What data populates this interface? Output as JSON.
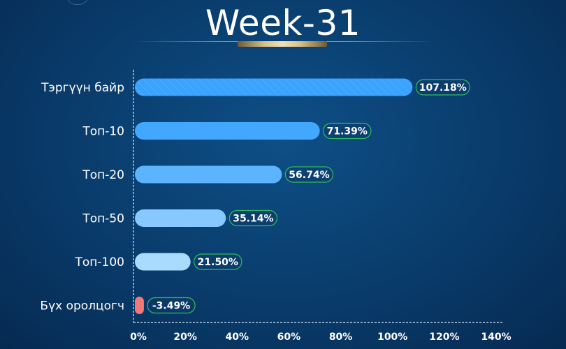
{
  "chart_data": {
    "type": "bar",
    "orientation": "horizontal",
    "title": "Week-31",
    "categories": [
      "Тэргүүн байр",
      "Топ-10",
      "Топ-20",
      "Топ-50",
      "Топ-100",
      "Бүх оролцогч"
    ],
    "values": [
      107.18,
      71.39,
      56.74,
      35.14,
      21.5,
      -3.49
    ],
    "value_labels": [
      "107.18%",
      "71.39%",
      "56.74%",
      "35.14%",
      "21.50%",
      "-3.49%"
    ],
    "x_ticks": [
      "0%",
      "20%",
      "40%",
      "60%",
      "80%",
      "100%",
      "120%",
      "140%"
    ],
    "xlim": [
      0,
      140
    ],
    "grid": false,
    "colors": {
      "bars": [
        "#3aa2ff",
        "#42a8ff",
        "#5cb4ff",
        "#86c8ff",
        "#a9dbff",
        "#f07878"
      ],
      "label_border": "#2fbf5a",
      "label_fill": "#0c3a68",
      "axis": "#dfe8f2"
    }
  }
}
